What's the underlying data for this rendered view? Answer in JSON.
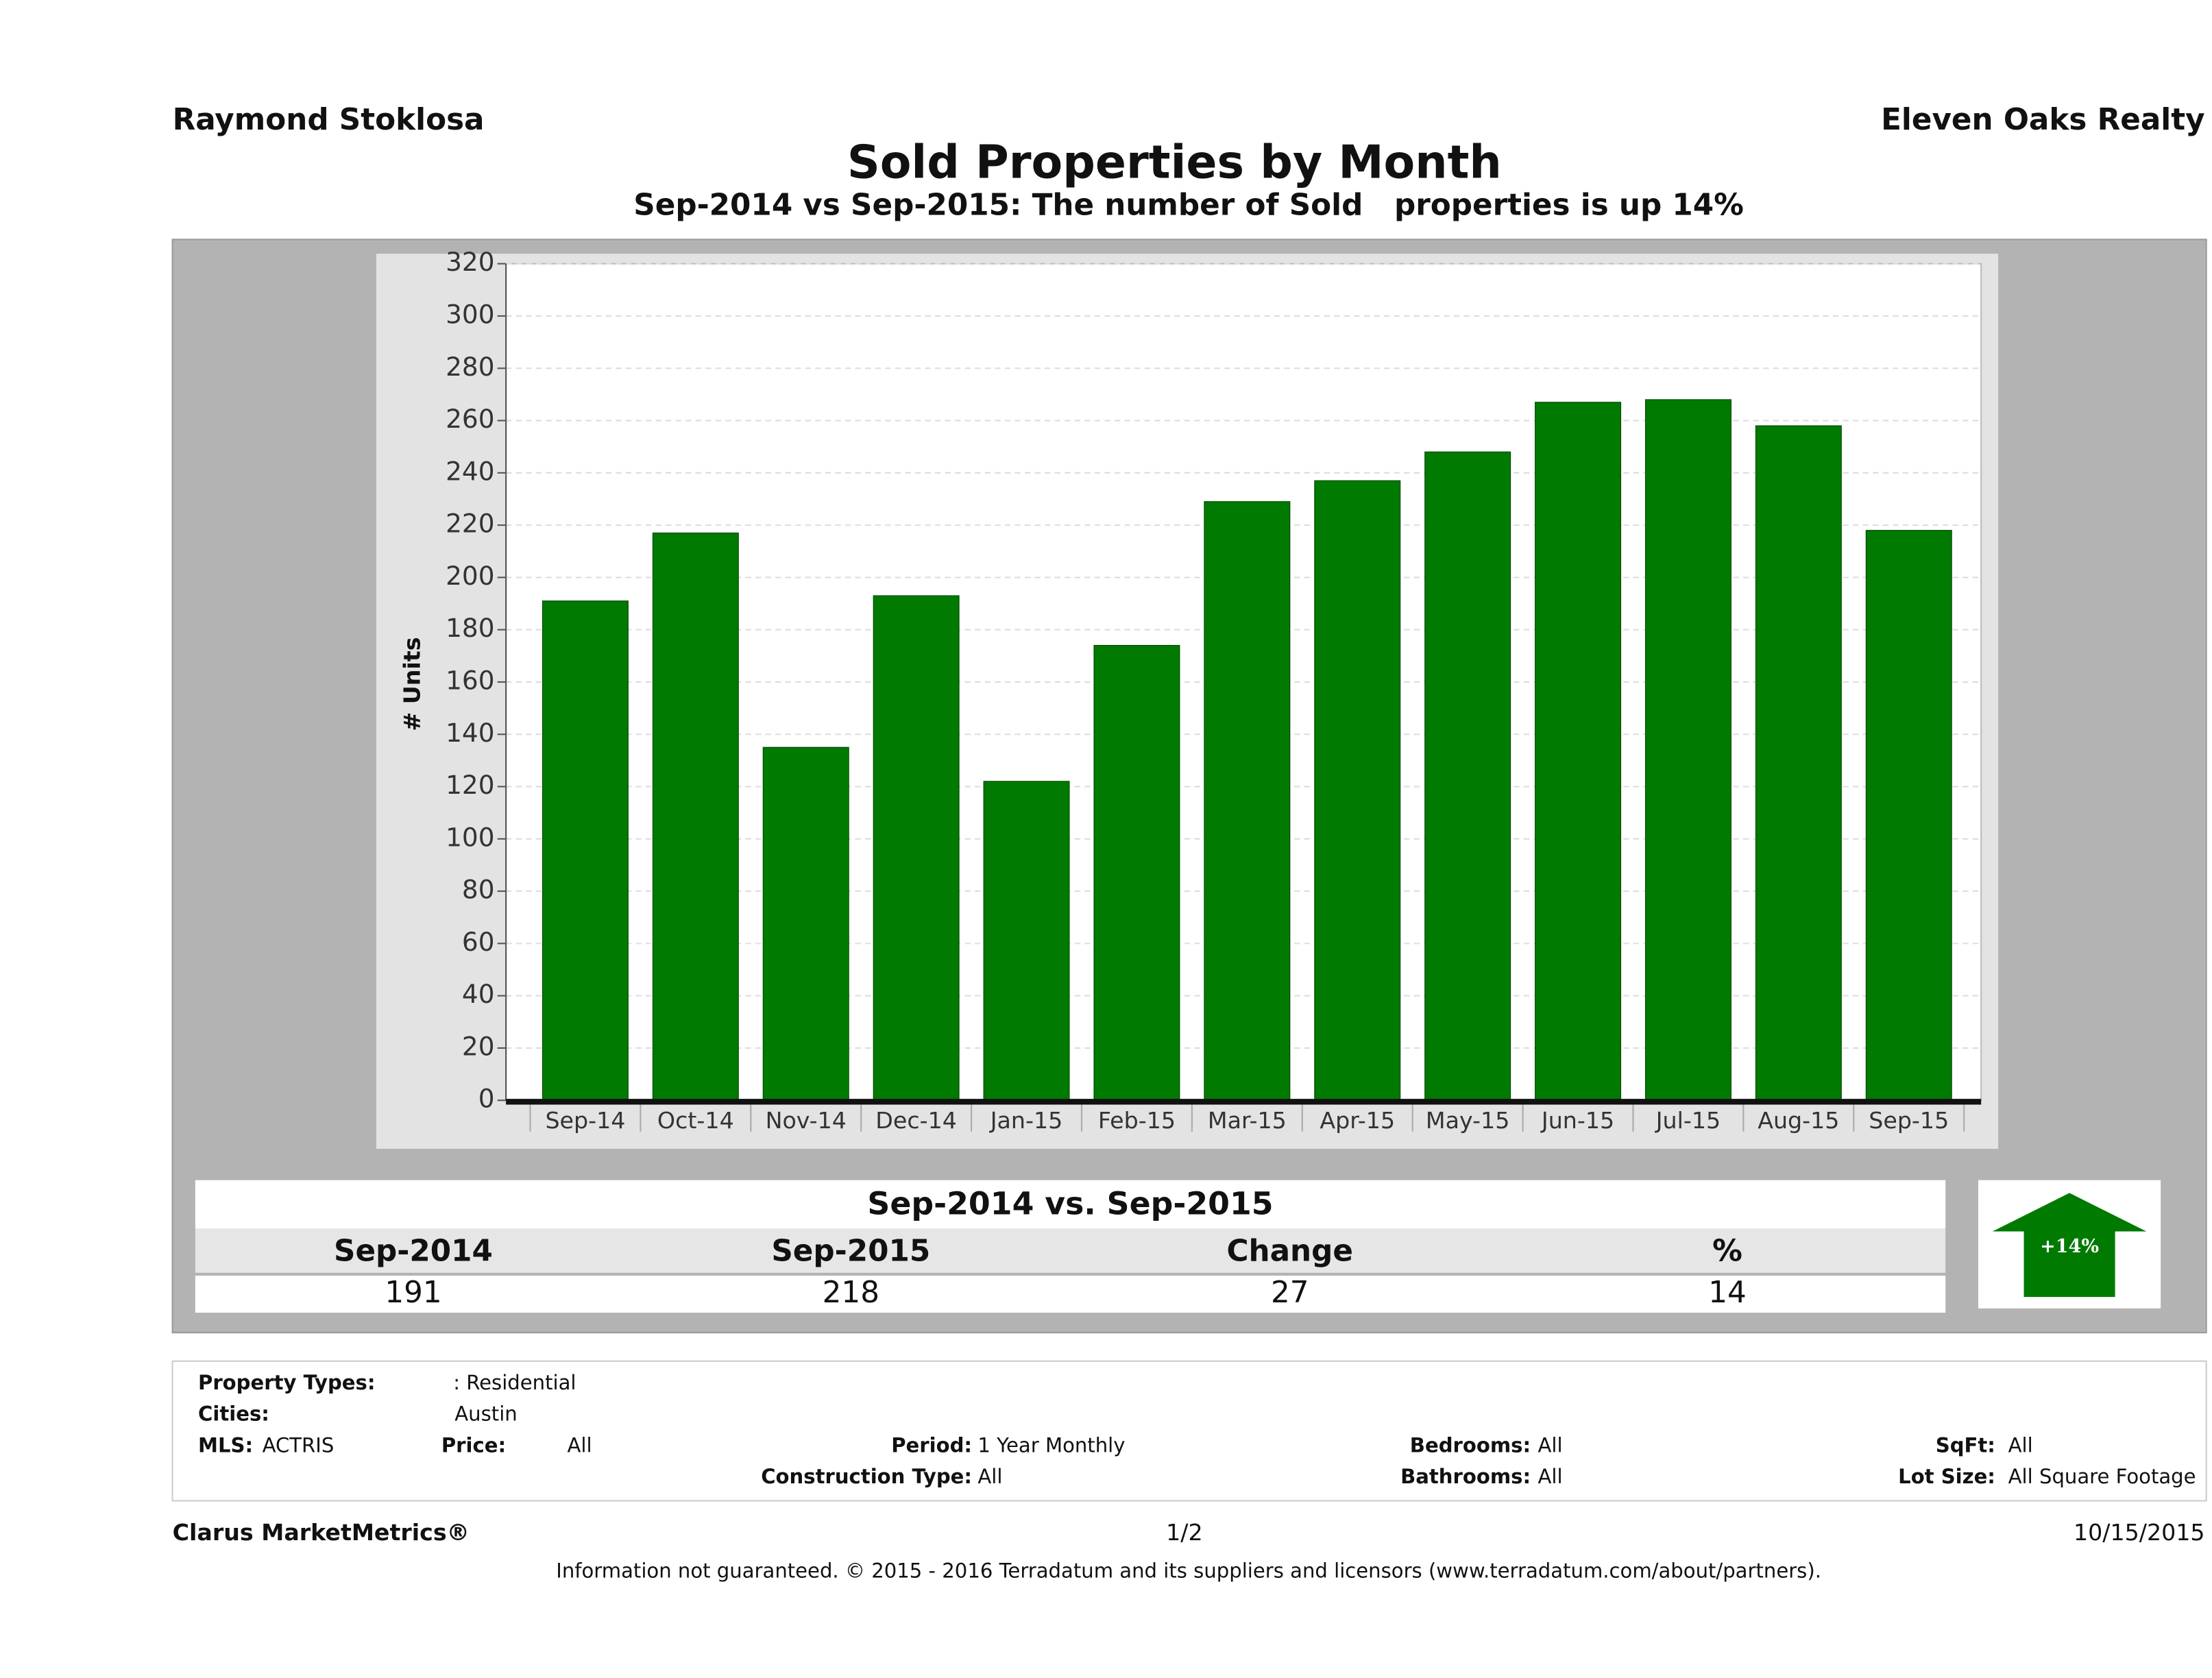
{
  "header": {
    "agent": "Raymond Stoklosa",
    "company": "Eleven Oaks Realty"
  },
  "chart_data": {
    "type": "bar",
    "title": "Sold Properties by Month",
    "subtitle": "Sep-2014 vs Sep-2015: The number of Sold   properties is up 14%",
    "y_label": "# Units",
    "categories": [
      "Sep-14",
      "Oct-14",
      "Nov-14",
      "Dec-14",
      "Jan-15",
      "Feb-15",
      "Mar-15",
      "Apr-15",
      "May-15",
      "Jun-15",
      "Jul-15",
      "Aug-15",
      "Sep-15"
    ],
    "values": [
      191,
      217,
      135,
      193,
      122,
      174,
      229,
      237,
      248,
      267,
      268,
      258,
      218
    ],
    "color": "#007a00",
    "ylim": [
      0,
      320
    ],
    "yticks": [
      0,
      20,
      40,
      60,
      80,
      100,
      120,
      140,
      160,
      180,
      200,
      220,
      240,
      260,
      280,
      300,
      320
    ],
    "grid": true
  },
  "summary": {
    "title": "Sep-2014 vs. Sep-2015",
    "headers": [
      "Sep-2014",
      "Sep-2015",
      "Change",
      "%"
    ],
    "values": [
      "191",
      "218",
      "27",
      "14"
    ],
    "badge": "+14%"
  },
  "filters": [
    {
      "label": "Property Types:",
      "value": ": Residential"
    },
    {
      "label": "Cities:",
      "value": "Austin"
    },
    {
      "label": "MLS:",
      "value": "ACTRIS"
    },
    {
      "label": "Price:",
      "value": "All"
    },
    {
      "label": "Period:",
      "value": "1 Year Monthly"
    },
    {
      "label": "Construction Type:",
      "value": "All"
    },
    {
      "label": "Bedrooms:",
      "value": "All"
    },
    {
      "label": "Bathrooms:",
      "value": "All"
    },
    {
      "label": "SqFt:",
      "value": "All"
    },
    {
      "label": "Lot Size:",
      "value": "All Square Footage"
    }
  ],
  "footer": {
    "brand": "Clarus MarketMetrics®",
    "page": "1/2",
    "date": "10/15/2015",
    "disclaimer": "Information not guaranteed. © 2015 - 2016 Terradatum and its suppliers and licensors (www.terradatum.com/about/partners)."
  }
}
